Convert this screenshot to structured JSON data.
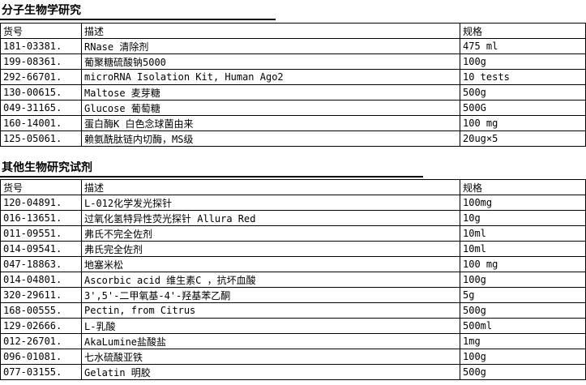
{
  "page": {
    "background_color": "#ffffff",
    "text_color": "#000000",
    "border_color": "#000000"
  },
  "sections": [
    {
      "title": "分子生物学研究",
      "columns": [
        "货号",
        "描述",
        "规格"
      ],
      "rows": [
        [
          "181-03381.",
          "RNase 清除剂",
          "475 ml"
        ],
        [
          "199-08361.",
          "葡聚糖硫酸钠5000",
          "100g"
        ],
        [
          "292-66701.",
          "microRNA Isolation Kit, Human Ago2",
          "10 tests"
        ],
        [
          "130-00615.",
          "Maltose 麦芽糖",
          "500g"
        ],
        [
          "049-31165.",
          "Glucose 葡萄糖",
          "500G"
        ],
        [
          "160-14001.",
          "蛋白酶K 白色念球菌由来",
          "100 mg"
        ],
        [
          "125-05061.",
          "赖氨酰肽链内切酶，MS级",
          "20ug×5"
        ]
      ]
    },
    {
      "title": "其他生物研究试剂",
      "columns": [
        "货号",
        "描述",
        "规格"
      ],
      "rows": [
        [
          "120-04891.",
          "L-012化学发光探针",
          "100mg"
        ],
        [
          "016-13651.",
          "过氧化氢特异性荧光探针 Allura Red",
          "10g"
        ],
        [
          "011-09551.",
          "弗氏不完全佐剂",
          "10ml"
        ],
        [
          "014-09541.",
          "弗氏完全佐剂",
          "10ml"
        ],
        [
          "047-18863.",
          "地塞米松",
          "100 mg"
        ],
        [
          "014-04801.",
          "Ascorbic acid  维生素C ，抗坏血酸",
          "100g"
        ],
        [
          "320-29611.",
          "3',5'-二甲氧基-4'-羟基苯乙酮",
          "5g"
        ],
        [
          "168-00555.",
          "Pectin, from Citrus",
          "500g"
        ],
        [
          "129-02666.",
          "L-乳酸",
          "500ml"
        ],
        [
          "012-26701.",
          "AkaLumine盐酸盐",
          "1mg"
        ],
        [
          "096-01081.",
          "七水硫酸亚铁",
          "100g"
        ],
        [
          "077-03155.",
          "Gelatin 明胶",
          "500g"
        ]
      ]
    }
  ]
}
